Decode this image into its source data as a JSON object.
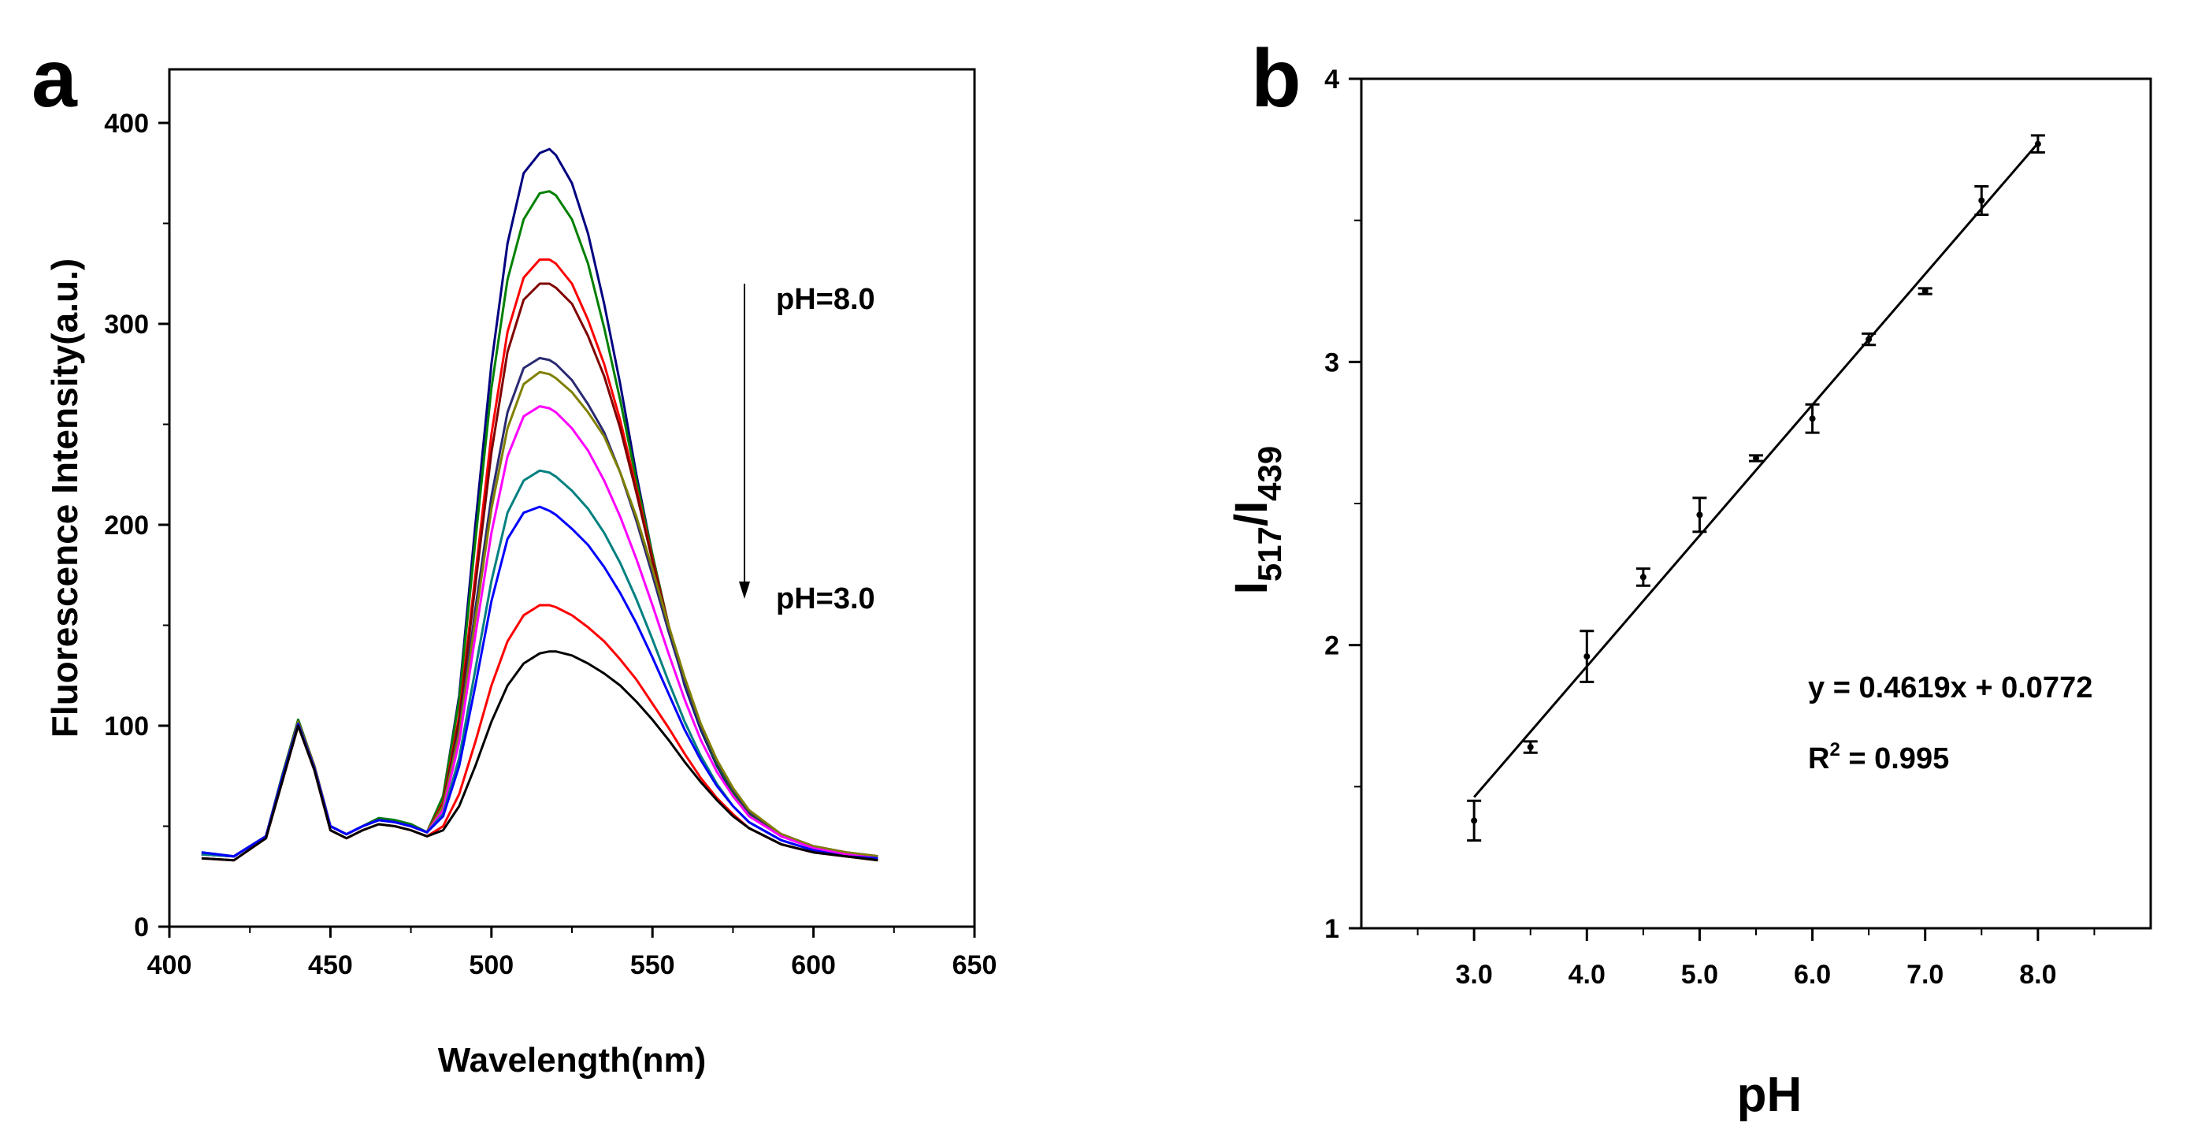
{
  "chart_data": [
    {
      "panel": "a",
      "type": "line",
      "xlabel": "Wavelength(nm)",
      "ylabel": "Fluorescence Intensity(a.u.)",
      "xlim": [
        400,
        650
      ],
      "ylim": [
        0,
        420
      ],
      "xticks": [
        400,
        450,
        500,
        550,
        600,
        650
      ],
      "yticks": [
        0,
        100,
        200,
        300,
        400
      ],
      "annotations": {
        "top": "pH=8.0",
        "bottom": "pH=3.0"
      },
      "x": [
        410,
        420,
        430,
        435,
        440,
        445,
        450,
        455,
        460,
        465,
        470,
        475,
        480,
        485,
        490,
        495,
        500,
        505,
        510,
        515,
        518,
        520,
        525,
        530,
        535,
        540,
        545,
        550,
        555,
        560,
        565,
        570,
        575,
        580,
        590,
        600,
        610,
        620
      ],
      "series": [
        {
          "color": "#000080",
          "values": [
            37,
            35,
            45,
            75,
            103,
            80,
            50,
            46,
            50,
            54,
            53,
            51,
            47,
            65,
            115,
            200,
            280,
            340,
            375,
            385,
            387,
            384,
            370,
            345,
            310,
            270,
            225,
            185,
            150,
            120,
            98,
            80,
            66,
            56,
            45,
            40,
            37,
            35
          ]
        },
        {
          "color": "#008000",
          "values": [
            37,
            35,
            45,
            75,
            103,
            80,
            50,
            46,
            50,
            54,
            53,
            51,
            47,
            65,
            113,
            192,
            268,
            322,
            352,
            365,
            366,
            364,
            352,
            330,
            298,
            262,
            222,
            185,
            150,
            121,
            99,
            81,
            67,
            56,
            45,
            40,
            37,
            35
          ]
        },
        {
          "color": "#ff0000",
          "values": [
            36,
            35,
            45,
            74,
            102,
            80,
            50,
            46,
            50,
            53,
            52,
            50,
            47,
            62,
            105,
            175,
            245,
            296,
            323,
            332,
            332,
            330,
            320,
            302,
            280,
            252,
            218,
            183,
            150,
            122,
            100,
            82,
            68,
            57,
            46,
            40,
            37,
            35
          ]
        },
        {
          "color": "#800000",
          "values": [
            36,
            35,
            45,
            74,
            102,
            80,
            50,
            46,
            50,
            53,
            52,
            50,
            47,
            61,
            103,
            170,
            236,
            286,
            312,
            320,
            320,
            318,
            310,
            294,
            274,
            248,
            216,
            182,
            150,
            122,
            100,
            82,
            68,
            57,
            46,
            40,
            37,
            35
          ]
        },
        {
          "color": "#2a2a72",
          "values": [
            36,
            35,
            45,
            74,
            102,
            80,
            50,
            46,
            50,
            53,
            52,
            50,
            47,
            60,
            98,
            158,
            214,
            256,
            278,
            283,
            282,
            280,
            272,
            260,
            246,
            226,
            202,
            175,
            147,
            121,
            99,
            82,
            68,
            57,
            46,
            40,
            37,
            35
          ]
        },
        {
          "color": "#808000",
          "values": [
            36,
            35,
            45,
            74,
            102,
            80,
            50,
            46,
            50,
            53,
            52,
            50,
            47,
            60,
            96,
            153,
            208,
            248,
            270,
            276,
            275,
            273,
            266,
            256,
            244,
            226,
            204,
            178,
            150,
            124,
            101,
            83,
            69,
            58,
            46,
            40,
            37,
            35
          ]
        },
        {
          "color": "#ff00ff",
          "values": [
            36,
            35,
            45,
            74,
            101,
            79,
            50,
            46,
            50,
            53,
            52,
            50,
            47,
            58,
            92,
            145,
            196,
            234,
            254,
            259,
            258,
            256,
            248,
            237,
            222,
            204,
            183,
            160,
            136,
            113,
            93,
            77,
            65,
            55,
            45,
            39,
            36,
            34
          ]
        },
        {
          "color": "#008080",
          "values": [
            36,
            35,
            45,
            74,
            101,
            79,
            50,
            46,
            50,
            53,
            52,
            50,
            47,
            56,
            84,
            128,
            172,
            206,
            222,
            227,
            226,
            224,
            217,
            208,
            196,
            181,
            163,
            143,
            122,
            102,
            85,
            71,
            60,
            52,
            43,
            38,
            35,
            34
          ]
        },
        {
          "color": "#0000ff",
          "values": [
            37,
            35,
            45,
            74,
            101,
            79,
            50,
            46,
            50,
            53,
            52,
            50,
            47,
            55,
            80,
            120,
            162,
            193,
            206,
            209,
            207,
            205,
            198,
            190,
            179,
            166,
            151,
            134,
            116,
            98,
            83,
            70,
            60,
            52,
            43,
            38,
            35,
            34
          ]
        },
        {
          "color": "#ff0000",
          "values": [
            34,
            33,
            44,
            72,
            100,
            78,
            48,
            44,
            48,
            51,
            50,
            48,
            45,
            50,
            66,
            92,
            120,
            142,
            155,
            160,
            160,
            159,
            155,
            149,
            142,
            133,
            123,
            111,
            99,
            86,
            74,
            64,
            56,
            49,
            41,
            37,
            35,
            33
          ]
        },
        {
          "color": "#000000",
          "values": [
            34,
            33,
            44,
            72,
            100,
            78,
            48,
            44,
            48,
            51,
            50,
            48,
            45,
            48,
            60,
            80,
            102,
            120,
            131,
            136,
            137,
            137,
            135,
            131,
            126,
            120,
            112,
            103,
            93,
            82,
            72,
            63,
            55,
            49,
            41,
            37,
            35,
            33
          ]
        }
      ]
    },
    {
      "panel": "b",
      "type": "scatter",
      "xlabel": "pH",
      "ylabel": "I",
      "ylabel_sub1": "517",
      "ylabel_mid": "/I",
      "ylabel_sub2": "439",
      "xlim": [
        2.0,
        9.0
      ],
      "ylim": [
        1,
        4
      ],
      "xticks": [
        3,
        4,
        5,
        6,
        7,
        8
      ],
      "xtick_labels": [
        "3.0",
        "4.0",
        "5.0",
        "6.0",
        "7.0",
        "8.0"
      ],
      "yticks": [
        1,
        2,
        3,
        4
      ],
      "x": [
        3.0,
        3.5,
        4.0,
        4.5,
        5.0,
        5.5,
        6.0,
        6.5,
        7.0,
        7.5,
        8.0
      ],
      "y": [
        1.38,
        1.64,
        1.96,
        2.24,
        2.46,
        2.66,
        2.8,
        3.08,
        3.25,
        3.57,
        3.77
      ],
      "yerr": [
        0.07,
        0.02,
        0.09,
        0.03,
        0.06,
        0.01,
        0.05,
        0.02,
        0.01,
        0.05,
        0.03
      ],
      "fit": {
        "slope": 0.4619,
        "intercept": 0.0772,
        "x_range": [
          3.0,
          8.0
        ]
      },
      "equation": "y = 0.4619x + 0.0772",
      "r2_prefix": "R",
      "r2_sup": "2",
      "r2_value": " = 0.995"
    }
  ]
}
